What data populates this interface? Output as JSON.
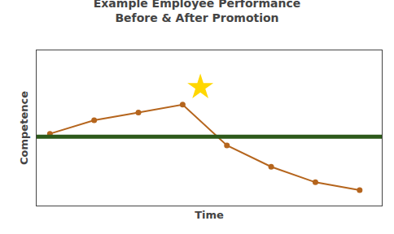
{
  "chart_data": {
    "type": "line",
    "title": "Example Employee Performance",
    "subtitle": "Before & After Promotion",
    "x_label": "Time",
    "y_label": "Competence",
    "series": [
      {
        "type": "line",
        "marker": "circle",
        "color": "#B5651D",
        "x": [
          0,
          1,
          2,
          3,
          4,
          5,
          6,
          7
        ],
        "values": [
          5.2,
          5.9,
          6.3,
          6.7,
          4.6,
          3.5,
          2.7,
          2.3
        ]
      },
      {
        "type": "hline",
        "color": "#2D5A1B",
        "values": [
          5.05
        ]
      },
      {
        "type": "scatter",
        "marker": "star",
        "color": "#FFD700",
        "x": [
          3.4
        ],
        "values": [
          7.6
        ]
      }
    ],
    "xlim": [
      -0.3,
      7.5
    ],
    "ylim": [
      1.5,
      9.5
    ],
    "grid": false,
    "tick_labels": false
  }
}
